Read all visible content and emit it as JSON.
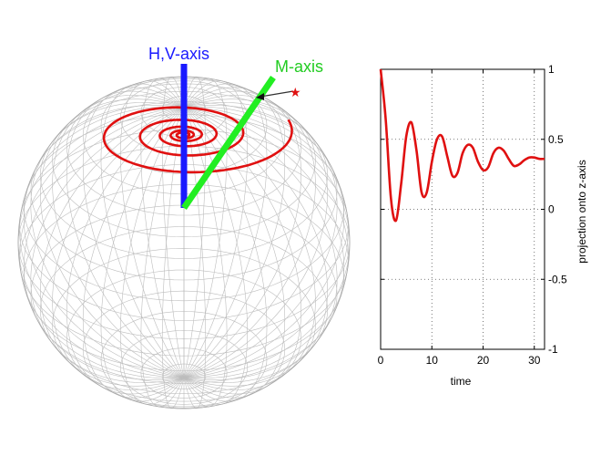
{
  "sphere": {
    "labels": {
      "hv_axis": "H,V-axis",
      "m_axis": "M-axis"
    },
    "colors": {
      "grid": "#bdbdbd",
      "hv_axis": "#1a1aff",
      "m_axis": "#22ee22",
      "spiral": "#e01010",
      "label_blue": "#1a1aff",
      "label_green": "#22cc22"
    }
  },
  "chart_data": {
    "type": "line",
    "xlabel": "time",
    "ylabel": "projection onto z-axis",
    "xlim": [
      0,
      32
    ],
    "ylim": [
      -1,
      1
    ],
    "xticks": [
      "0",
      "10",
      "20",
      "30"
    ],
    "yticks": [
      "-1",
      "-0.5",
      "0",
      "0.5",
      "1"
    ],
    "grid": true,
    "series": [
      {
        "color": "#e01010",
        "x": [
          0,
          1,
          2,
          3,
          4,
          5,
          6,
          7,
          8,
          9,
          10,
          11,
          12,
          13,
          14,
          15,
          16,
          17,
          18,
          19,
          20,
          21,
          22,
          23,
          24,
          25,
          26,
          27,
          28,
          29,
          30,
          31,
          32
        ],
        "y": [
          1.0,
          0.64,
          0.08,
          -0.08,
          0.18,
          0.52,
          0.62,
          0.42,
          0.12,
          0.12,
          0.34,
          0.5,
          0.52,
          0.38,
          0.24,
          0.26,
          0.4,
          0.46,
          0.44,
          0.34,
          0.28,
          0.3,
          0.4,
          0.44,
          0.42,
          0.36,
          0.31,
          0.32,
          0.35,
          0.37,
          0.37,
          0.36,
          0.36
        ]
      }
    ]
  }
}
